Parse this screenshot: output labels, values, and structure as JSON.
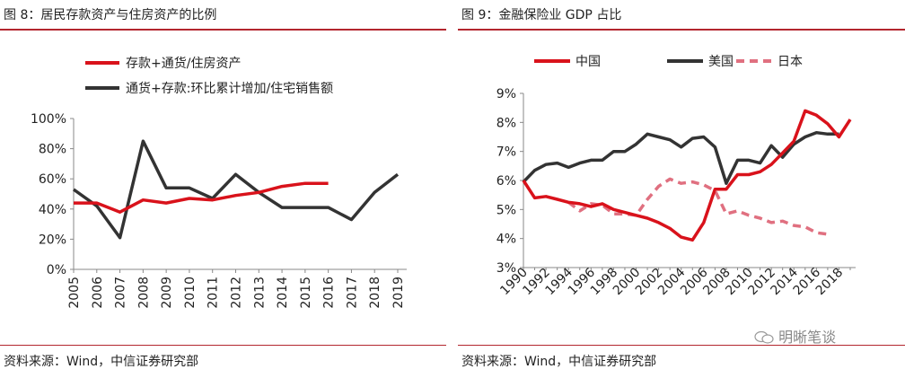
{
  "left": {
    "title": "图 8：居民存款资产与住房资产的比例",
    "source": "资料来源：Wind，中信证券研究部"
  },
  "right": {
    "title": "图 9：金融保险业 GDP 占比",
    "source": "资料来源：Wind，中信证券研究部"
  },
  "watermark": {
    "text": "明晰笔谈",
    "icon": "wechat-icon"
  },
  "colors": {
    "red": "#d9121b",
    "dark": "#333333",
    "pink": "#e07080",
    "rule": "#b3262e"
  },
  "chart_data": [
    {
      "type": "line",
      "categories": [
        "2005",
        "2006",
        "2007",
        "2008",
        "2009",
        "2010",
        "2011",
        "2012",
        "2013",
        "2014",
        "2015",
        "2016",
        "2017",
        "2018",
        "2019"
      ],
      "ylim": [
        0,
        100
      ],
      "yticks": [
        0,
        20,
        40,
        60,
        80,
        100
      ],
      "ytick_labels": [
        "0%",
        "20%",
        "40%",
        "60%",
        "80%",
        "100%"
      ],
      "legend_position": "top",
      "series": [
        {
          "name": "存款+通货/住房资产",
          "color": "#d9121b",
          "values": [
            44,
            44,
            38,
            46,
            44,
            47,
            46,
            49,
            51,
            55,
            57,
            57,
            null,
            null,
            null
          ]
        },
        {
          "name": "通货+存款:环比累计增加/住宅销售额",
          "color": "#333333",
          "values": [
            53,
            42,
            21,
            85,
            54,
            54,
            47,
            63,
            51,
            41,
            41,
            41,
            33,
            51,
            63
          ]
        }
      ]
    },
    {
      "type": "line",
      "x": [
        1990,
        1991,
        1992,
        1993,
        1994,
        1995,
        1996,
        1997,
        1998,
        1999,
        2000,
        2001,
        2002,
        2003,
        2004,
        2005,
        2006,
        2007,
        2008,
        2009,
        2010,
        2011,
        2012,
        2013,
        2014,
        2015,
        2016,
        2017,
        2018,
        2019
      ],
      "xticks": [
        1990,
        1992,
        1994,
        1996,
        1998,
        2000,
        2002,
        2004,
        2006,
        2008,
        2010,
        2012,
        2014,
        2016,
        2018
      ],
      "ylim": [
        3,
        9
      ],
      "yticks": [
        3,
        4,
        5,
        6,
        7,
        8,
        9
      ],
      "ytick_labels": [
        "3%",
        "4%",
        "5%",
        "6%",
        "7%",
        "8%",
        "9%"
      ],
      "legend_position": "top",
      "series": [
        {
          "name": "中国",
          "color": "#d9121b",
          "dash": "solid",
          "values": [
            6.0,
            5.4,
            5.45,
            5.35,
            5.25,
            5.2,
            5.1,
            5.2,
            5.0,
            4.9,
            4.8,
            4.7,
            4.55,
            4.35,
            4.05,
            3.95,
            4.55,
            5.7,
            5.7,
            6.2,
            6.2,
            6.3,
            6.55,
            6.95,
            7.35,
            8.4,
            8.25,
            7.95,
            7.5,
            8.1
          ]
        },
        {
          "name": "美国",
          "color": "#333333",
          "dash": "solid",
          "values": [
            5.95,
            6.35,
            6.55,
            6.6,
            6.45,
            6.6,
            6.7,
            6.7,
            7.0,
            7.0,
            7.25,
            7.6,
            7.5,
            7.4,
            7.15,
            7.45,
            7.5,
            7.15,
            5.9,
            6.7,
            6.7,
            6.6,
            7.2,
            6.8,
            7.25,
            7.5,
            7.65,
            7.6,
            7.6,
            null
          ]
        },
        {
          "name": "日本",
          "color": "#e07080",
          "dash": "dashed",
          "values": [
            null,
            null,
            null,
            null,
            5.25,
            4.95,
            5.2,
            5.15,
            4.85,
            4.85,
            4.8,
            5.35,
            5.8,
            6.05,
            5.9,
            5.95,
            5.85,
            5.65,
            4.85,
            4.95,
            4.8,
            4.7,
            4.55,
            4.6,
            4.45,
            4.4,
            4.2,
            4.15,
            null,
            null
          ]
        }
      ]
    }
  ]
}
